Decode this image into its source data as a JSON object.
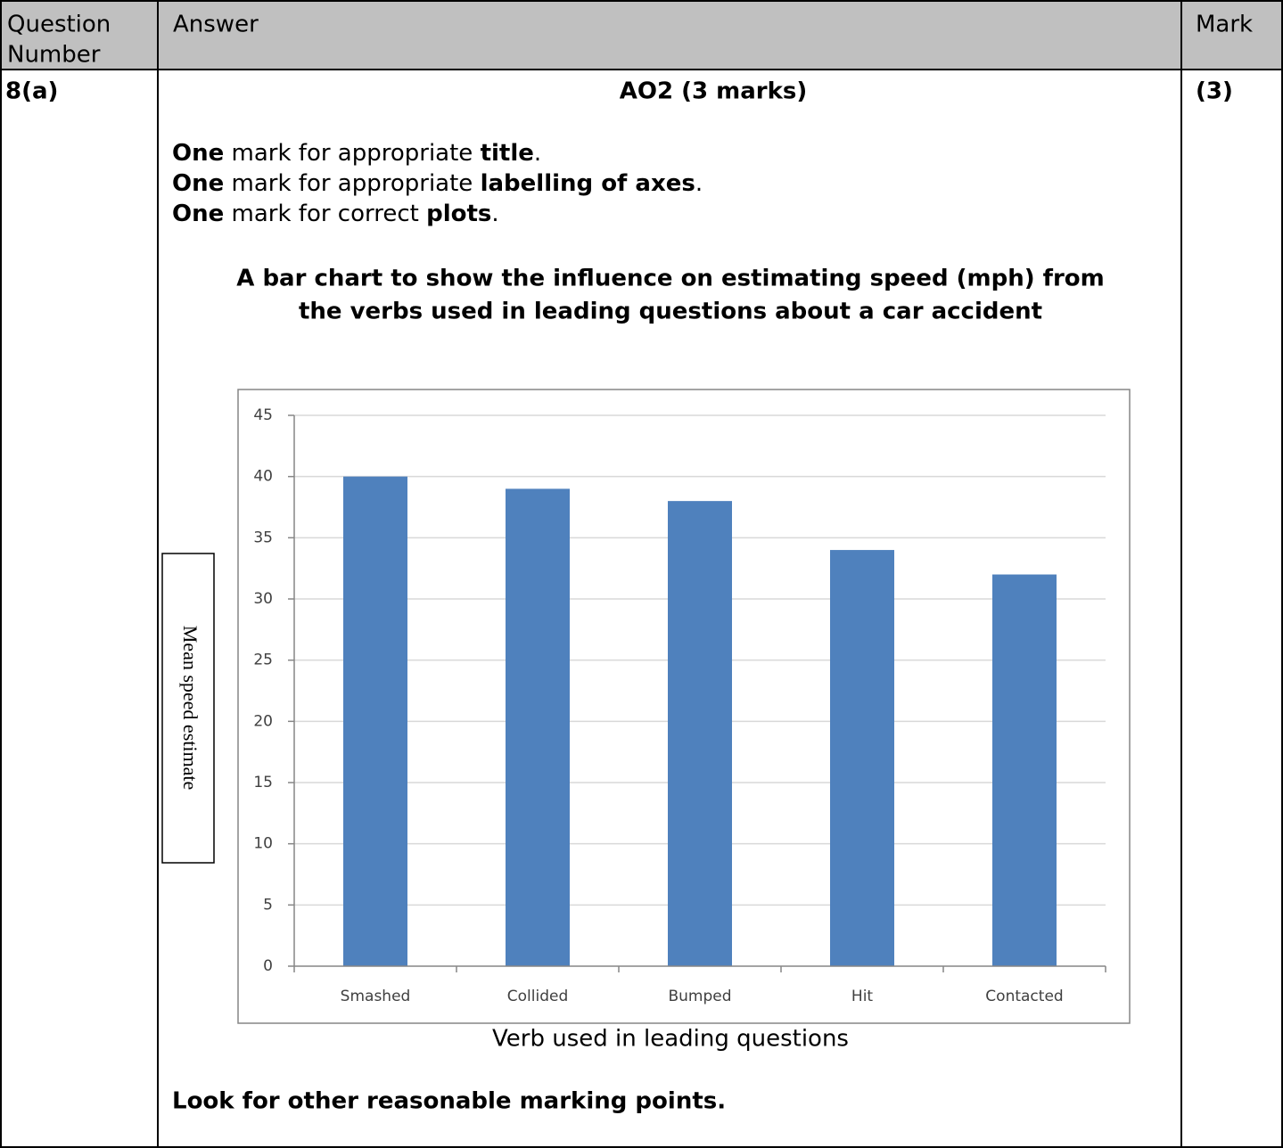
{
  "header": {
    "question_number": [
      "Question",
      "Number"
    ],
    "answer": "Answer",
    "mark": "Mark"
  },
  "row": {
    "question_number": "8(a)",
    "heading": "AO2 (3 marks)",
    "mark": "(3)",
    "criteria": [
      [
        "One",
        " mark for appropriate ",
        "title",
        "."
      ],
      [
        "One",
        " mark for appropriate ",
        "labelling of axes",
        "."
      ],
      [
        "One",
        " mark for correct ",
        "plots",
        "."
      ]
    ],
    "chart": {
      "type": "bar",
      "title": [
        "A bar chart to show the influence on estimating speed (mph) from",
        "the verbs used in leading questions about a car accident"
      ],
      "y_label": "Mean speed estimate",
      "x_label": "Verb used in leading questions",
      "categories": [
        "Smashed",
        "Collided",
        "Bumped",
        "Hit",
        "Contacted"
      ],
      "values": [
        40,
        39,
        38,
        34,
        32
      ],
      "color": "#4f81bd",
      "ylim": [
        0,
        45
      ],
      "yticks": [
        0,
        5,
        10,
        15,
        20,
        25,
        30,
        35,
        40,
        45
      ],
      "grid": true
    },
    "note": "Look for other reasonable marking points."
  }
}
